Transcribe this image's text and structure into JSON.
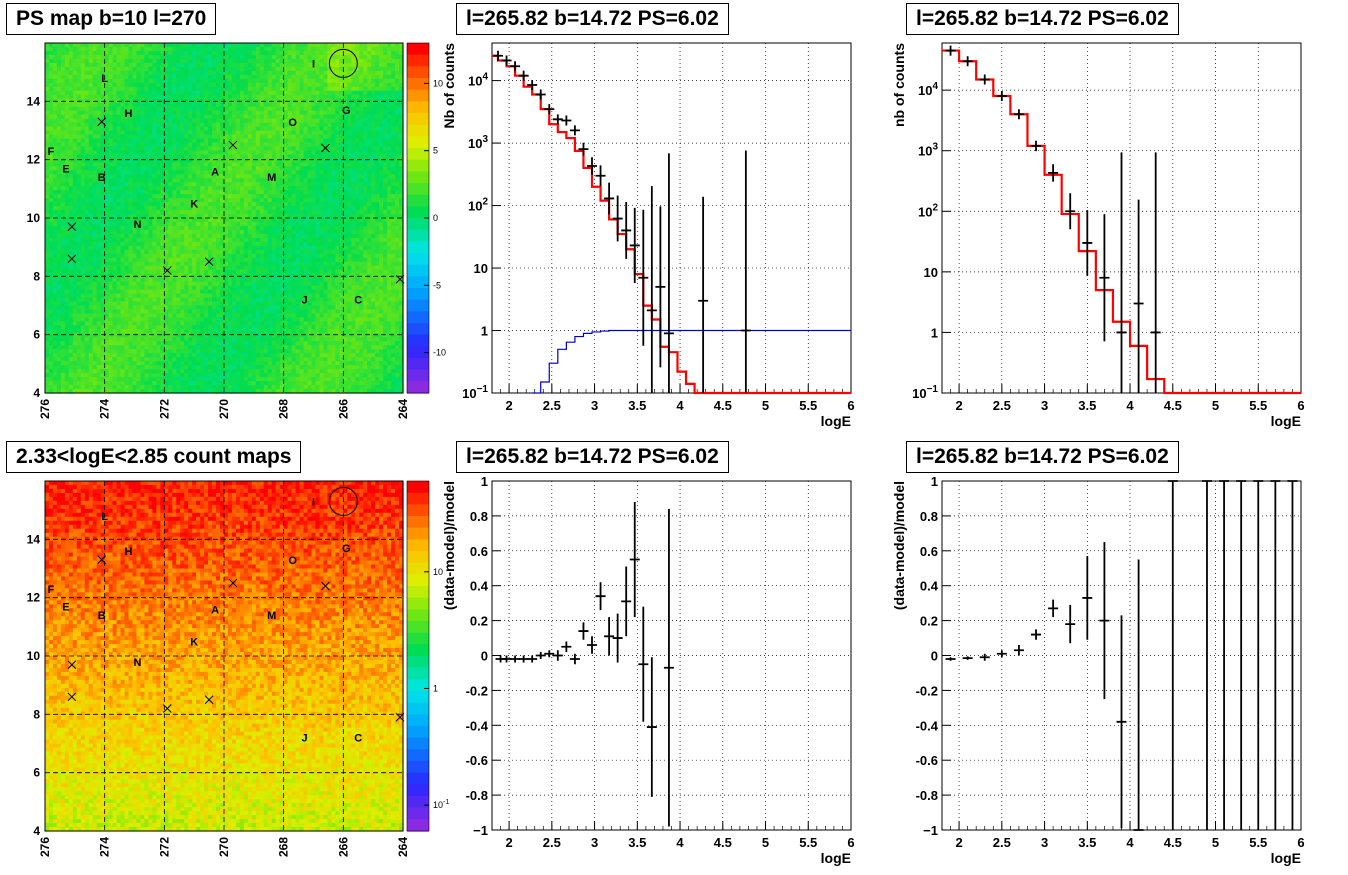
{
  "panels": {
    "top_left_title": "PS map b=10 l=270",
    "top_mid_title": "l=265.82 b=14.72 PS=6.02",
    "top_right_title": "l=265.82 b=14.72 PS=6.02",
    "bottom_left_title": "2.33<logE<2.85 count maps",
    "bottom_mid_title": "l=265.82 b=14.72 PS=6.02",
    "bottom_right_title": "l=265.82 b=14.72 PS=6.02"
  },
  "chart_data": [
    {
      "type": "heatmap",
      "title": "PS map b=10 l=270",
      "x_ticks": [
        "276",
        "274",
        "272",
        "270",
        "268",
        "266",
        "264"
      ],
      "y_ticks": [
        "4",
        "6",
        "8",
        "10",
        "12",
        "14"
      ],
      "xlim": [
        276,
        264
      ],
      "ylim": [
        4,
        16
      ],
      "z_ticks": [
        "10",
        "5",
        "0",
        "-5",
        "-10"
      ],
      "zlim": [
        -13,
        13
      ],
      "colormap": "rainbow",
      "dominant_value": 1,
      "source_labels": [
        {
          "label": "I",
          "l": 267.0,
          "b": 15.3
        },
        {
          "label": "L",
          "l": 274.0,
          "b": 14.8
        },
        {
          "label": "H",
          "l": 273.2,
          "b": 13.6
        },
        {
          "label": "O",
          "l": 267.7,
          "b": 13.3
        },
        {
          "label": "G",
          "l": 265.9,
          "b": 13.7
        },
        {
          "label": "F",
          "l": 275.8,
          "b": 12.3
        },
        {
          "label": "E",
          "l": 275.3,
          "b": 11.7
        },
        {
          "label": "B",
          "l": 274.1,
          "b": 11.4
        },
        {
          "label": "A",
          "l": 270.3,
          "b": 11.6
        },
        {
          "label": "M",
          "l": 268.4,
          "b": 11.4
        },
        {
          "label": "K",
          "l": 271.0,
          "b": 10.5
        },
        {
          "label": "N",
          "l": 272.9,
          "b": 9.8
        },
        {
          "label": "J",
          "l": 267.3,
          "b": 7.2
        },
        {
          "label": "C",
          "l": 265.5,
          "b": 7.2
        }
      ],
      "crosses": [
        {
          "l": 274.1,
          "b": 13.3
        },
        {
          "l": 269.7,
          "b": 12.5
        },
        {
          "l": 266.6,
          "b": 12.4
        },
        {
          "l": 275.1,
          "b": 9.7
        },
        {
          "l": 275.1,
          "b": 8.6
        },
        {
          "l": 271.9,
          "b": 8.2
        },
        {
          "l": 270.5,
          "b": 8.5
        },
        {
          "l": 264.1,
          "b": 7.9
        }
      ],
      "circle": {
        "l": 266.0,
        "b": 15.3
      }
    },
    {
      "type": "line",
      "title": "l=265.82 b=14.72 PS=6.02",
      "xlabel": "logE",
      "ylabel": "Nb of counts",
      "x_ticks": [
        "2",
        "2.5",
        "3",
        "3.5",
        "4",
        "4.5",
        "5",
        "5.5",
        "6"
      ],
      "y_ticks": [
        "10^4",
        "10^3",
        "10^2",
        "10",
        "1",
        "10^-1"
      ],
      "xlim": [
        1.8,
        6
      ],
      "ylim": [
        0.1,
        40000
      ],
      "log_y": true,
      "grid": true,
      "series": [
        {
          "role": "data",
          "points": [
            [
              1.87,
              25000
            ],
            [
              1.97,
              21000
            ],
            [
              2.07,
              17000
            ],
            [
              2.17,
              12000
            ],
            [
              2.27,
              8500
            ],
            [
              2.37,
              6000
            ],
            [
              2.47,
              3500
            ],
            [
              2.57,
              2400
            ],
            [
              2.67,
              2300
            ],
            [
              2.77,
              1600
            ],
            [
              2.87,
              800
            ],
            [
              2.97,
              430
            ],
            [
              3.07,
              300
            ],
            [
              3.17,
              130
            ],
            [
              3.27,
              62
            ],
            [
              3.37,
              40
            ],
            [
              3.47,
              23
            ],
            [
              3.57,
              7
            ],
            [
              3.67,
              2.1
            ],
            [
              3.77,
              5
            ],
            [
              3.87,
              0.9
            ],
            [
              4.27,
              3
            ],
            [
              4.77,
              1
            ]
          ]
        },
        {
          "role": "model",
          "values": [
            [
              1.8,
              25000
            ],
            [
              1.87,
              21000
            ],
            [
              1.97,
              17000
            ],
            [
              2.07,
              12000
            ],
            [
              2.17,
              8000
            ],
            [
              2.27,
              6000
            ],
            [
              2.37,
              3500
            ],
            [
              2.47,
              2000
            ],
            [
              2.57,
              1500
            ],
            [
              2.67,
              1200
            ],
            [
              2.77,
              750
            ],
            [
              2.87,
              400
            ],
            [
              2.97,
              200
            ],
            [
              3.07,
              120
            ],
            [
              3.17,
              60
            ],
            [
              3.27,
              35
            ],
            [
              3.37,
              20
            ],
            [
              3.47,
              8
            ],
            [
              3.57,
              2.5
            ],
            [
              3.67,
              1.5
            ],
            [
              3.77,
              0.55
            ],
            [
              3.87,
              0.45
            ],
            [
              3.97,
              0.22
            ],
            [
              4.07,
              0.14
            ],
            [
              4.17,
              0.1
            ],
            [
              6,
              0.1
            ]
          ]
        },
        {
          "role": "blue",
          "values": [
            [
              2.27,
              0.1
            ],
            [
              2.37,
              0.15
            ],
            [
              2.47,
              0.3
            ],
            [
              2.57,
              0.5
            ],
            [
              2.67,
              0.65
            ],
            [
              2.77,
              0.8
            ],
            [
              2.87,
              0.9
            ],
            [
              2.97,
              0.95
            ],
            [
              3.07,
              0.98
            ],
            [
              3.17,
              1
            ],
            [
              6,
              1
            ]
          ]
        }
      ]
    },
    {
      "type": "line",
      "title": "l=265.82 b=14.72 PS=6.02",
      "xlabel": "logE",
      "ylabel": "nb of counts",
      "x_ticks": [
        "2",
        "2.5",
        "3",
        "3.5",
        "4",
        "4.5",
        "5",
        "5.5",
        "6"
      ],
      "y_ticks": [
        "10^4",
        "10^3",
        "10^2",
        "10",
        "1",
        "10^-1"
      ],
      "xlim": [
        1.8,
        6
      ],
      "ylim": [
        0.1,
        60000
      ],
      "log_y": true,
      "grid": true,
      "series": [
        {
          "role": "data",
          "points": [
            [
              1.9,
              45000
            ],
            [
              2.1,
              30000
            ],
            [
              2.3,
              15000
            ],
            [
              2.5,
              8000
            ],
            [
              2.7,
              4000
            ],
            [
              2.9,
              1200
            ],
            [
              3.1,
              430
            ],
            [
              3.3,
              100
            ],
            [
              3.5,
              30
            ],
            [
              3.7,
              8
            ],
            [
              3.9,
              1
            ],
            [
              4.1,
              3
            ],
            [
              4.3,
              1
            ]
          ]
        },
        {
          "role": "model",
          "values": [
            [
              1.8,
              45000
            ],
            [
              2.0,
              30000
            ],
            [
              2.2,
              15000
            ],
            [
              2.4,
              8000
            ],
            [
              2.6,
              4000
            ],
            [
              2.8,
              1200
            ],
            [
              3.0,
              400
            ],
            [
              3.2,
              90
            ],
            [
              3.4,
              22
            ],
            [
              3.6,
              5
            ],
            [
              3.8,
              1.5
            ],
            [
              4.0,
              0.6
            ],
            [
              4.2,
              0.17
            ],
            [
              4.4,
              0.1
            ],
            [
              6,
              0.1
            ]
          ]
        }
      ]
    },
    {
      "type": "heatmap",
      "title": "2.33<logE<2.85 count maps",
      "x_ticks": [
        "276",
        "274",
        "272",
        "270",
        "268",
        "266",
        "264"
      ],
      "y_ticks": [
        "4",
        "6",
        "8",
        "10",
        "12",
        "14"
      ],
      "xlim": [
        276,
        264
      ],
      "ylim": [
        4,
        16
      ],
      "z_ticks": [
        "10",
        "1",
        "10^-1"
      ],
      "zlim": [
        0.06,
        60
      ],
      "log_z": true,
      "colormap": "rainbow"
    },
    {
      "type": "scatter",
      "title": "l=265.82 b=14.72 PS=6.02",
      "xlabel": "logE",
      "ylabel": "(data-model)/model",
      "x_ticks": [
        "2",
        "2.5",
        "3",
        "3.5",
        "4",
        "4.5",
        "5",
        "5.5",
        "6"
      ],
      "y_ticks": [
        "1",
        "0.8",
        "0.6",
        "0.4",
        "0.2",
        "0",
        "-0.2",
        "-0.4",
        "-0.6",
        "-0.8",
        "-1"
      ],
      "xlim": [
        1.8,
        6
      ],
      "ylim": [
        -1,
        1
      ],
      "grid": true,
      "points": [
        {
          "x": 1.9,
          "y": -0.02,
          "err": 0.02
        },
        {
          "x": 1.97,
          "y": -0.02,
          "err": 0.02
        },
        {
          "x": 2.07,
          "y": -0.02,
          "err": 0.02
        },
        {
          "x": 2.17,
          "y": -0.02,
          "err": 0.02
        },
        {
          "x": 2.27,
          "y": -0.02,
          "err": 0.02
        },
        {
          "x": 2.37,
          "y": 0,
          "err": 0.02
        },
        {
          "x": 2.47,
          "y": 0.01,
          "err": 0.02
        },
        {
          "x": 2.57,
          "y": 0,
          "err": 0.03
        },
        {
          "x": 2.67,
          "y": 0.05,
          "err": 0.03
        },
        {
          "x": 2.77,
          "y": -0.02,
          "err": 0.03
        },
        {
          "x": 2.87,
          "y": 0.14,
          "err": 0.05
        },
        {
          "x": 2.97,
          "y": 0.06,
          "err": 0.05
        },
        {
          "x": 3.07,
          "y": 0.34,
          "err": 0.08
        },
        {
          "x": 3.17,
          "y": 0.11,
          "err": 0.11
        },
        {
          "x": 3.27,
          "y": 0.1,
          "err": 0.14
        },
        {
          "x": 3.37,
          "y": 0.31,
          "err": 0.2
        },
        {
          "x": 3.47,
          "y": 0.55,
          "err": 0.33
        },
        {
          "x": 3.57,
          "y": -0.05,
          "err": 0.33
        },
        {
          "x": 3.67,
          "y": -0.41,
          "err": 0.4
        },
        {
          "x": 3.87,
          "y": -0.07,
          "err": 0.91
        }
      ]
    },
    {
      "type": "scatter",
      "title": "l=265.82 b=14.72 PS=6.02",
      "xlabel": "logE",
      "ylabel": "(data-model)/model",
      "x_ticks": [
        "2",
        "2.5",
        "3",
        "3.5",
        "4",
        "4.5",
        "5",
        "5.5",
        "6"
      ],
      "y_ticks": [
        "1",
        "0.8",
        "0.6",
        "0.4",
        "0.2",
        "0",
        "-0.2",
        "-0.4",
        "-0.6",
        "-0.8",
        "-1"
      ],
      "xlim": [
        1.8,
        6
      ],
      "ylim": [
        -1,
        1
      ],
      "grid": true,
      "points": [
        {
          "x": 1.9,
          "y": -0.02,
          "err": 0.01
        },
        {
          "x": 2.1,
          "y": -0.015,
          "err": 0.01
        },
        {
          "x": 2.3,
          "y": -0.01,
          "err": 0.02
        },
        {
          "x": 2.5,
          "y": 0.01,
          "err": 0.02
        },
        {
          "x": 2.7,
          "y": 0.03,
          "err": 0.03
        },
        {
          "x": 2.9,
          "y": 0.12,
          "err": 0.03
        },
        {
          "x": 3.1,
          "y": 0.27,
          "err": 0.05
        },
        {
          "x": 3.3,
          "y": 0.18,
          "err": 0.11
        },
        {
          "x": 3.5,
          "y": 0.33,
          "err": 0.24
        },
        {
          "x": 3.7,
          "y": 0.2,
          "err": 0.45
        },
        {
          "x": 3.9,
          "y": -0.38,
          "err": 0.61
        },
        {
          "x": 4.1,
          "y": -1,
          "err": 1.55
        },
        {
          "x": 4.5,
          "y": 1,
          "err": 2
        },
        {
          "x": 4.9,
          "y": 1,
          "err": 2
        },
        {
          "x": 5.1,
          "y": 1,
          "err": 2
        },
        {
          "x": 5.3,
          "y": 1,
          "err": 2
        },
        {
          "x": 5.5,
          "y": 1,
          "err": 2
        },
        {
          "x": 5.7,
          "y": 1,
          "err": 2
        },
        {
          "x": 5.9,
          "y": 1,
          "err": 2
        }
      ]
    }
  ]
}
